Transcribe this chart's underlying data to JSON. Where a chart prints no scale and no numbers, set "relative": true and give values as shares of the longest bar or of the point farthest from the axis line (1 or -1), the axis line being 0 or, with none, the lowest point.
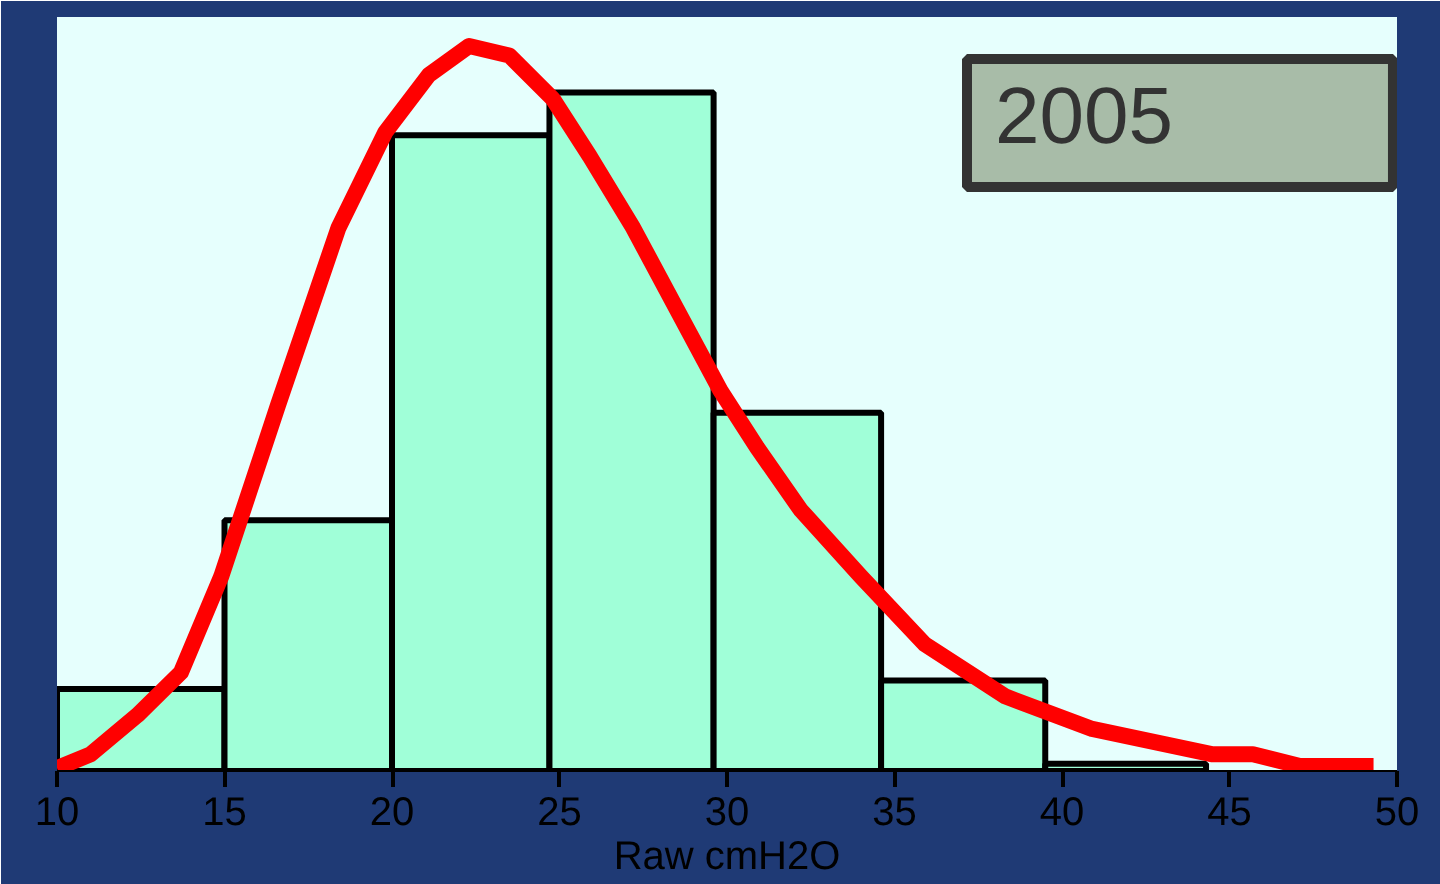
{
  "chart_data": {
    "type": "histogram",
    "xlabel": "Raw cmH2O",
    "relative": true,
    "xlim": [
      10,
      50
    ],
    "xticks": [
      10,
      15,
      20,
      25,
      30,
      35,
      40,
      45,
      50
    ],
    "series": [
      {
        "color": "#a0ffd8",
        "bins": [
          10,
          15,
          20,
          24.7,
          29.6,
          34.6,
          39.5,
          44.3
        ],
        "values": [
          0.113,
          0.346,
          0.877,
          0.936,
          0.494,
          0.125,
          0.01
        ]
      },
      {
        "type": "line",
        "color": "#ff0000",
        "x": [
          10.0,
          11.0,
          12.4,
          13.7,
          14.9,
          16.6,
          18.4,
          19.8,
          21.1,
          22.3,
          23.5,
          24.8,
          25.9,
          27.2,
          28.5,
          29.8,
          30.9,
          32.2,
          34.0,
          35.9,
          38.3,
          40.9,
          44.5,
          45.7,
          47.1,
          49.3
        ],
        "values": [
          0.004,
          0.023,
          0.077,
          0.136,
          0.268,
          0.505,
          0.749,
          0.881,
          0.96,
          1.0,
          0.987,
          0.927,
          0.848,
          0.749,
          0.637,
          0.525,
          0.446,
          0.36,
          0.268,
          0.175,
          0.103,
          0.058,
          0.023,
          0.023,
          0.007,
          0.007
        ]
      }
    ],
    "annotations": [
      "2005"
    ]
  }
}
